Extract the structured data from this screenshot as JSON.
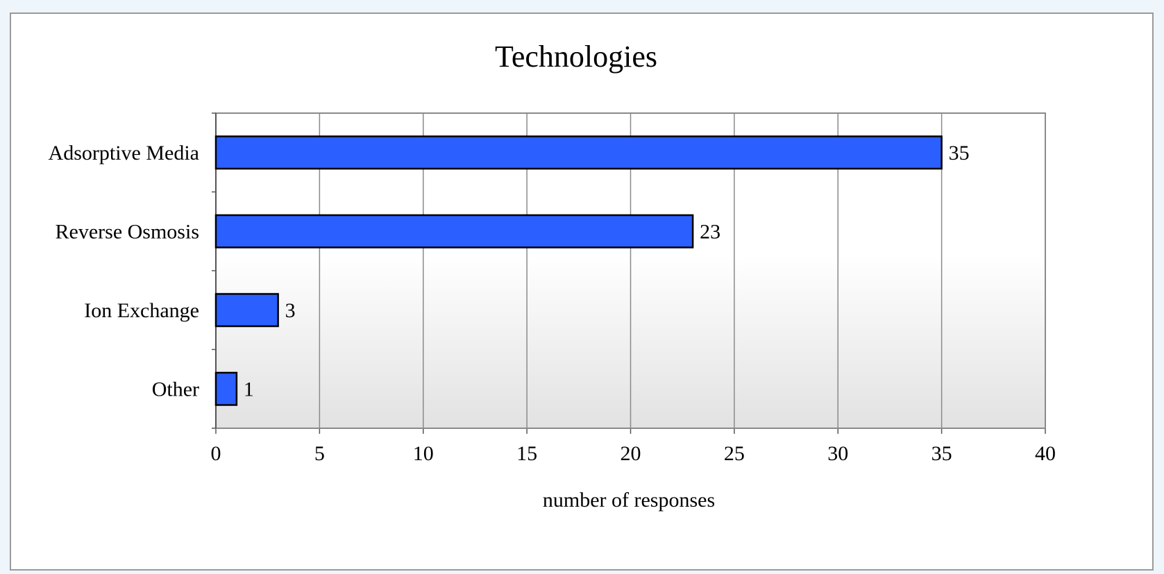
{
  "chart_data": {
    "type": "bar",
    "orientation": "horizontal",
    "title": "Technologies",
    "xlabel": "number of responses",
    "ylabel": "",
    "categories": [
      "Adsorptive Media",
      "Reverse Osmosis",
      "Ion Exchange",
      "Other"
    ],
    "values": [
      35,
      23,
      3,
      1
    ],
    "xlim": [
      0,
      40
    ],
    "xticks": [
      "0",
      "5",
      "10",
      "15",
      "20",
      "25",
      "30",
      "35",
      "40"
    ],
    "grid": "vertical",
    "legend": "none",
    "bar_color": "#2b5fff",
    "bar_edge_color": "#000000"
  }
}
